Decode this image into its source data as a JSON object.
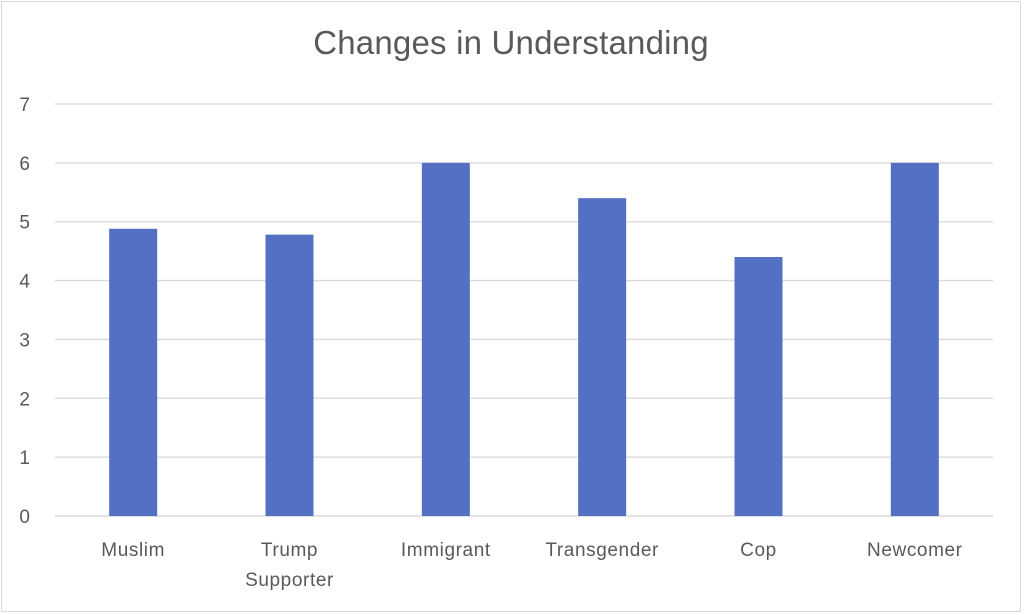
{
  "chart_data": {
    "type": "bar",
    "title": "Changes in Understanding",
    "xlabel": "",
    "ylabel": "",
    "categories": [
      "Muslim",
      "Trump Supporter",
      "Immigrant",
      "Transgender",
      "Cop",
      "Newcomer"
    ],
    "category_lines": [
      [
        "Muslim"
      ],
      [
        "Trump",
        "Supporter"
      ],
      [
        "Immigrant"
      ],
      [
        "Transgender"
      ],
      [
        "Cop"
      ],
      [
        "Newcomer"
      ]
    ],
    "values": [
      4.88,
      4.78,
      6.0,
      5.4,
      4.4,
      6.0
    ],
    "ylim": [
      0,
      7
    ],
    "yticks": [
      0,
      1,
      2,
      3,
      4,
      5,
      6,
      7
    ],
    "grid": true,
    "legend": "none",
    "bar_color": "#5470C2",
    "grid_color": "#d9d9d9"
  }
}
